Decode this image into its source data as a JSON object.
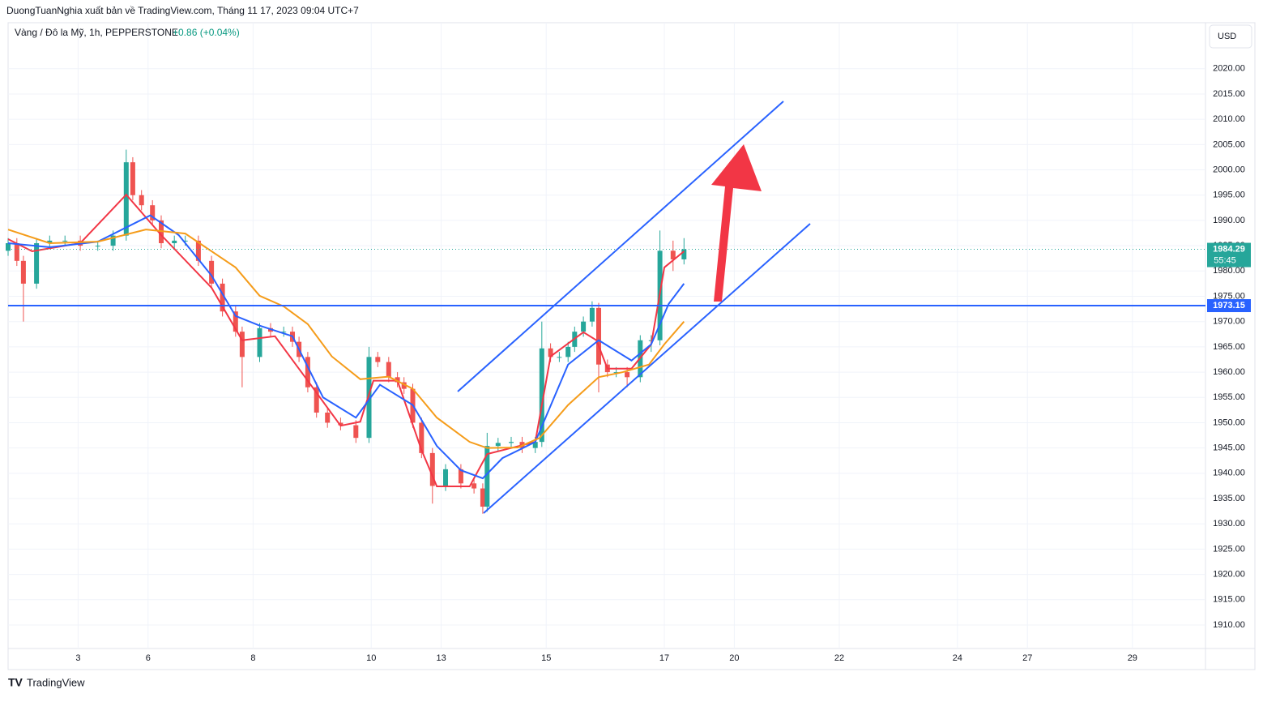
{
  "header": {
    "publisher": "DuongTuanNghia xuất bản về TradingView.com, Tháng 11 17, 2023 09:04 UTC+7",
    "symbol": "Vàng / Đô la Mỹ, 1h, PEPPERSTONE",
    "change": "+0.86 (+0.04%)",
    "currency": "USD",
    "brand": "TradingView"
  },
  "chart_data": {
    "type": "candlestick",
    "xlim": [
      0,
      547.4
    ],
    "xticks": [
      {
        "value": 32,
        "label": "3"
      },
      {
        "value": 64,
        "label": "6"
      },
      {
        "value": 112,
        "label": "8"
      },
      {
        "value": 166,
        "label": "10"
      },
      {
        "value": 198,
        "label": "13"
      },
      {
        "value": 246,
        "label": "15"
      },
      {
        "value": 300,
        "label": "17"
      },
      {
        "value": 332,
        "label": "20"
      },
      {
        "value": 380,
        "label": "22"
      },
      {
        "value": 434,
        "label": "24"
      },
      {
        "value": 466,
        "label": "27"
      },
      {
        "value": 514,
        "label": "29"
      }
    ],
    "ylim": [
      1905.35,
      2029.1
    ],
    "yticks": [
      {
        "value": 1910,
        "label": "1910.00"
      },
      {
        "value": 1915,
        "label": "1915.00"
      },
      {
        "value": 1920,
        "label": "1920.00"
      },
      {
        "value": 1925,
        "label": "1925.00"
      },
      {
        "value": 1930,
        "label": "1930.00"
      },
      {
        "value": 1935,
        "label": "1935.00"
      },
      {
        "value": 1940,
        "label": "1940.00"
      },
      {
        "value": 1945,
        "label": "1945.00"
      },
      {
        "value": 1950,
        "label": "1950.00"
      },
      {
        "value": 1955,
        "label": "1955.00"
      },
      {
        "value": 1960,
        "label": "1960.00"
      },
      {
        "value": 1965,
        "label": "1965.00"
      },
      {
        "value": 1970,
        "label": "1970.00"
      },
      {
        "value": 1975,
        "label": "1975.00"
      },
      {
        "value": 1980,
        "label": "1980.00"
      },
      {
        "value": 1985,
        "label": "1985.00"
      },
      {
        "value": 1990,
        "label": "1990.00"
      },
      {
        "value": 1995,
        "label": "1995.00"
      },
      {
        "value": 2000,
        "label": "2000.00"
      },
      {
        "value": 2005,
        "label": "2005.00"
      },
      {
        "value": 2010,
        "label": "2010.00"
      },
      {
        "value": 2015,
        "label": "2015.00"
      },
      {
        "value": 2020,
        "label": "2020.00"
      }
    ],
    "grid": true,
    "up_color": "#26a69a",
    "down_color": "#ef5350",
    "candles": {
      "x": [
        0,
        4,
        7,
        13,
        19,
        26,
        33,
        41,
        48,
        54,
        57,
        61,
        66,
        70,
        76,
        81,
        87,
        93,
        98,
        104,
        107,
        115,
        120,
        126,
        130,
        133,
        137,
        141,
        146,
        152,
        159,
        165,
        169,
        174,
        178,
        181,
        185,
        189,
        194,
        200,
        207,
        213,
        217,
        219,
        224,
        230,
        235,
        241,
        244,
        248,
        252,
        256,
        259,
        263,
        267,
        270,
        274,
        278,
        283,
        289,
        294,
        298,
        304,
        309
      ],
      "open": [
        1984,
        1985.5,
        1982,
        1977.5,
        1985.5,
        1986,
        1986,
        1985,
        1985,
        1987,
        2001.5,
        1995,
        1993,
        1990,
        1985.5,
        1986,
        1986,
        1982,
        1977.5,
        1972,
        1968,
        1963,
        1968.7,
        1968,
        1968,
        1966,
        1963,
        1957,
        1952,
        1950,
        1949.5,
        1947,
        1963,
        1962,
        1959,
        1958,
        1956.7,
        1950,
        1944,
        1937.5,
        1940.8,
        1938,
        1937,
        1933.4,
        1945.4,
        1946,
        1946.2,
        1945,
        1946.2,
        1964.7,
        1963,
        1963,
        1965,
        1968,
        1970,
        1972.7,
        1961.5,
        1960,
        1960,
        1959,
        1966.3,
        1966.3,
        1984,
        1982.3
      ],
      "high": [
        1986.5,
        1986.5,
        1983,
        1986.5,
        1987,
        1987,
        1987,
        1986,
        1988,
        2004,
        2002.5,
        1996,
        1994,
        1991,
        1987,
        1987,
        1987,
        1983,
        1978.5,
        1973,
        1969,
        1969.7,
        1969.7,
        1969,
        1969,
        1967,
        1964,
        1958,
        1953,
        1951,
        1950.5,
        1965,
        1964,
        1963,
        1960,
        1959,
        1957.7,
        1951,
        1945,
        1941.8,
        1941.8,
        1939,
        1938,
        1948,
        1947,
        1947.2,
        1947.2,
        1947.2,
        1970,
        1965.7,
        1964,
        1966,
        1969,
        1971,
        1974,
        1973.7,
        1962.5,
        1961,
        1961,
        1967.3,
        1967.3,
        1988,
        1986,
        1986.5
      ],
      "low": [
        1983,
        1981,
        1970,
        1976.5,
        1984.5,
        1985,
        1984,
        1984,
        1984,
        1986,
        1994,
        1992,
        1989,
        1984.5,
        1984.5,
        1985,
        1981,
        1976.5,
        1971,
        1967,
        1957,
        1962,
        1967,
        1967,
        1965,
        1962,
        1956,
        1951,
        1949,
        1948.5,
        1946,
        1946,
        1961,
        1958,
        1957,
        1955.7,
        1949,
        1943,
        1934,
        1936.5,
        1937,
        1936,
        1932,
        1932.4,
        1944.4,
        1945,
        1944,
        1944,
        1945.2,
        1962,
        1962,
        1962,
        1964,
        1967,
        1969,
        1956,
        1959,
        1959,
        1957,
        1958,
        1964,
        1965.3,
        1980,
        1981.3
      ],
      "close": [
        1985.5,
        1982,
        1977.5,
        1985.5,
        1986,
        1986,
        1985,
        1985,
        1987,
        2001.5,
        1995,
        1993,
        1990,
        1985.5,
        1986,
        1986,
        1982,
        1977.5,
        1972,
        1968,
        1963,
        1968.7,
        1968,
        1968,
        1966,
        1963,
        1957,
        1952,
        1950,
        1949.5,
        1947,
        1963,
        1962,
        1959,
        1958,
        1956.7,
        1950,
        1944,
        1937.5,
        1940.8,
        1938,
        1937,
        1933.4,
        1945.4,
        1946,
        1946.2,
        1945,
        1946.2,
        1964.7,
        1963,
        1963,
        1965,
        1968,
        1970,
        1972.7,
        1961.5,
        1960,
        1960,
        1959,
        1966.3,
        1966.3,
        1984,
        1982.3,
        1984.3
      ]
    },
    "series": [
      {
        "color": "#f23645",
        "x": [
          0,
          11,
          33,
          54,
          70,
          93,
          107,
          122,
          137,
          152,
          161,
          167,
          178,
          189,
          196,
          211,
          219,
          241,
          248,
          263,
          269,
          274,
          285,
          294,
          300,
          309
        ],
        "values": [
          1986.3,
          1983.9,
          1985.5,
          1995.1,
          1987.1,
          1976.7,
          1966.3,
          1967.1,
          1958.3,
          1949.4,
          1950.2,
          1958.3,
          1958.3,
          1944.6,
          1937.4,
          1937.4,
          1943.8,
          1946.2,
          1963.1,
          1967.9,
          1966.3,
          1960.7,
          1960.7,
          1965.5,
          1980.7,
          1983.9
        ]
      },
      {
        "color": "#2962ff",
        "x": [
          0,
          19,
          41,
          65,
          78,
          93,
          104,
          115,
          130,
          144,
          159,
          170,
          185,
          196,
          207,
          217,
          226,
          241,
          256,
          270,
          285,
          294,
          302,
          309
        ],
        "values": [
          1985.5,
          1984.7,
          1985.8,
          1991,
          1987.1,
          1979.1,
          1971.1,
          1969.2,
          1967.1,
          1955,
          1951,
          1957.5,
          1953.5,
          1945.4,
          1940.6,
          1939,
          1943,
          1946.2,
          1961.5,
          1966.3,
          1962.3,
          1965.5,
          1973.5,
          1977.5
        ]
      },
      {
        "color": "#f59c1a",
        "x": [
          0,
          19,
          41,
          63,
          81,
          93,
          104,
          115,
          126,
          137,
          148,
          161,
          174,
          185,
          196,
          211,
          219,
          233,
          243,
          256,
          270,
          281,
          293,
          300,
          309
        ],
        "values": [
          1988.2,
          1985.5,
          1985.8,
          1988.2,
          1987.4,
          1983.9,
          1980.7,
          1975.1,
          1973,
          1969.5,
          1963.1,
          1958.6,
          1959.1,
          1956.7,
          1951,
          1946.2,
          1945,
          1945.1,
          1947,
          1953.5,
          1959,
          1960,
          1961.5,
          1965.5,
          1970
        ]
      }
    ],
    "last_price": {
      "value": 1984.29,
      "label": "1984.29",
      "countdown": "55:45"
    },
    "level": {
      "value": 1973.15,
      "label": "1973.15"
    }
  }
}
